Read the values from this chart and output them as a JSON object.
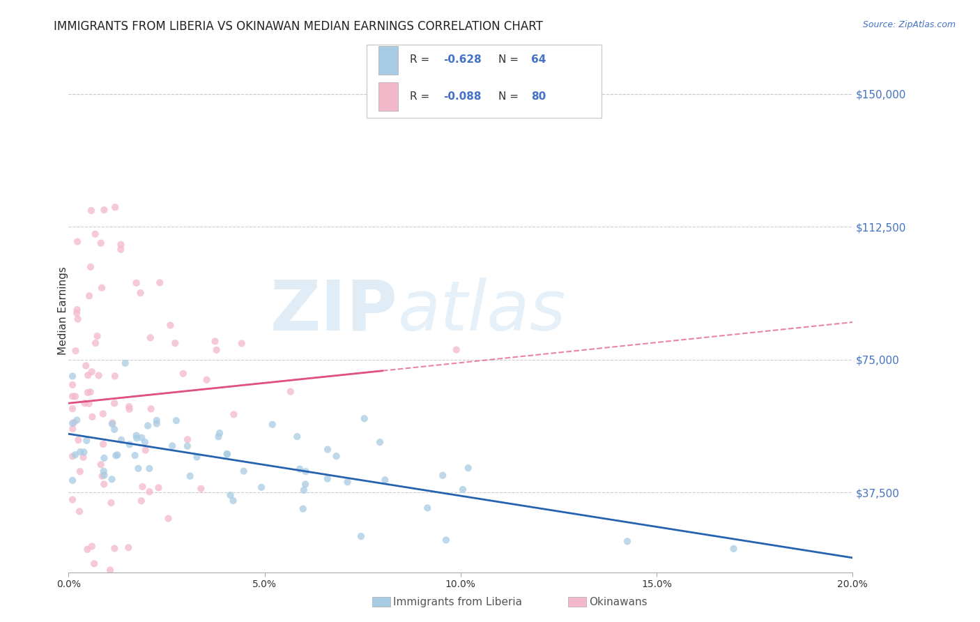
{
  "title": "IMMIGRANTS FROM LIBERIA VS OKINAWAN MEDIAN EARNINGS CORRELATION CHART",
  "source": "Source: ZipAtlas.com",
  "ylabel": "Median Earnings",
  "x_min": 0.0,
  "x_max": 0.2,
  "y_min": 15000,
  "y_max": 162500,
  "yticks": [
    37500,
    75000,
    112500,
    150000
  ],
  "ytick_labels": [
    "$37,500",
    "$75,000",
    "$112,500",
    "$150,000"
  ],
  "xticks": [
    0.0,
    0.05,
    0.1,
    0.15,
    0.2
  ],
  "xtick_labels": [
    "0.0%",
    "5.0%",
    "10.0%",
    "15.0%",
    "20.0%"
  ],
  "legend_label1": "Immigrants from Liberia",
  "legend_label2": "Okinawans",
  "r1": -0.628,
  "n1": 64,
  "r2": -0.088,
  "n2": 80,
  "color_blue": "#a8cce4",
  "color_pink": "#f4b8cb",
  "color_blue_line": "#2563b0",
  "color_pink_line": "#e05080",
  "color_blue_text": "#4472c4",
  "watermark_zip": "ZIP",
  "watermark_atlas": "atlas"
}
